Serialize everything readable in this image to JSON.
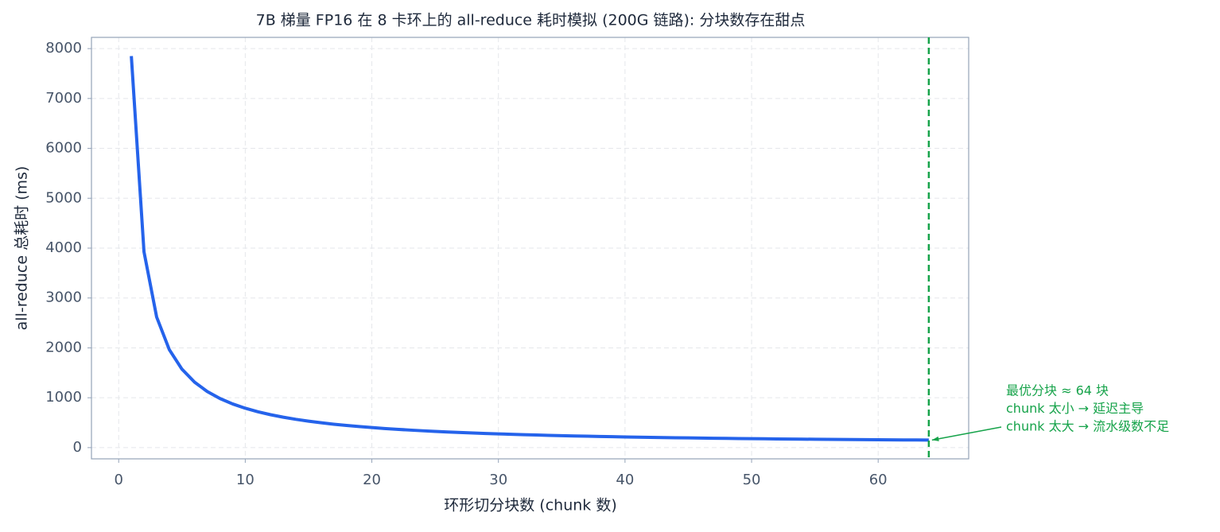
{
  "chart_data": {
    "type": "line",
    "title": "7B 梯量 FP16 在 8 卡环上的 all-reduce 耗时模拟 (200G 链路): 分块数存在甜点",
    "x_label": "环形切分块数 (chunk 数)",
    "y_label": "all-reduce 总耗时 (ms)",
    "x": [
      1,
      2,
      3,
      4,
      5,
      6,
      7,
      8,
      9,
      10,
      11,
      12,
      13,
      14,
      15,
      16,
      17,
      18,
      19,
      20,
      21,
      22,
      23,
      24,
      25,
      26,
      27,
      28,
      29,
      30,
      31,
      32,
      33,
      34,
      35,
      36,
      37,
      38,
      39,
      40,
      41,
      42,
      43,
      44,
      45,
      46,
      47,
      48,
      49,
      50,
      51,
      52,
      53,
      54,
      55,
      56,
      57,
      58,
      59,
      60,
      61,
      62,
      63,
      64
    ],
    "series": [
      {
        "color": "#2563eb",
        "values": [
          7850,
          3926,
          2618,
          1964,
          1572,
          1311,
          1125,
          985,
          876,
          790,
          719,
          660,
          610,
          567,
          530,
          498,
          469,
          444,
          422,
          402,
          383,
          367,
          352,
          338,
          325,
          314,
          303,
          293,
          284,
          275,
          267,
          260,
          253,
          246,
          240,
          234,
          229,
          224,
          219,
          214,
          210,
          206,
          202,
          198,
          195,
          191,
          188,
          185,
          182,
          180,
          177,
          174,
          172,
          170,
          167,
          165,
          163,
          161,
          159,
          158,
          156,
          154,
          153,
          151
        ]
      }
    ],
    "xlim": [
      -2.15,
      67.15
    ],
    "ylim": [
      -225,
      8225
    ],
    "xticks": [
      0,
      10,
      20,
      30,
      40,
      50,
      60
    ],
    "yticks": [
      0,
      1000,
      2000,
      3000,
      4000,
      5000,
      6000,
      7000,
      8000
    ],
    "grid": true,
    "vline": {
      "x": 64,
      "color": "#16a34a"
    },
    "annotation": {
      "lines": [
        "最优分块 ≈ 64 块",
        "chunk 太小 → 延迟主导",
        "chunk 太大 → 流水级数不足"
      ],
      "color": "#16a34a"
    }
  }
}
